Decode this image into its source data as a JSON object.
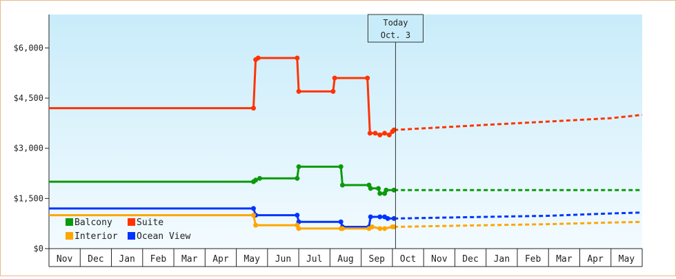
{
  "chart_data": {
    "type": "line",
    "title": "",
    "xlabel": "",
    "ylabel": "",
    "ylim": [
      0,
      7000
    ],
    "yticks": [
      0,
      1500,
      3000,
      4500,
      6000
    ],
    "ytick_labels": [
      "$0",
      "$1,500",
      "$3,000",
      "$4,500",
      "$6,000"
    ],
    "month_labels": [
      "Nov",
      "Dec",
      "Jan",
      "Feb",
      "Mar",
      "Apr",
      "May",
      "Jun",
      "Jul",
      "Aug",
      "Sep",
      "Oct",
      "Nov",
      "Dec",
      "Jan",
      "Feb",
      "Mar",
      "Apr",
      "May"
    ],
    "today_label": "Today",
    "today_date": "Oct. 3",
    "today_x": 11.1,
    "grid": false,
    "legend_position": "bottom-left",
    "legend": [
      {
        "name": "Balcony",
        "color": "#0a9a0a"
      },
      {
        "name": "Suite",
        "color": "#ff3300"
      },
      {
        "name": "Interior",
        "color": "#ffa500"
      },
      {
        "name": "Ocean View",
        "color": "#0033ff"
      }
    ],
    "series": [
      {
        "name": "Suite",
        "color": "#ff3300",
        "values": [
          [
            0.0,
            4200
          ],
          [
            6.55,
            4200
          ],
          [
            6.62,
            5650
          ],
          [
            6.7,
            5700
          ],
          [
            7.95,
            5700
          ],
          [
            8.0,
            4700
          ],
          [
            9.1,
            4700
          ],
          [
            9.15,
            5100
          ],
          [
            10.2,
            5100
          ],
          [
            10.28,
            3450
          ],
          [
            10.45,
            3450
          ],
          [
            10.6,
            3400
          ],
          [
            10.75,
            3450
          ],
          [
            10.9,
            3400
          ],
          [
            11.0,
            3500
          ],
          [
            11.05,
            3550
          ]
        ],
        "forecast": [
          [
            11.1,
            3550
          ],
          [
            14.0,
            3700
          ],
          [
            16.0,
            3800
          ],
          [
            18.0,
            3900
          ],
          [
            19.0,
            4000
          ]
        ]
      },
      {
        "name": "Balcony",
        "color": "#0a9a0a",
        "values": [
          [
            0.0,
            2000
          ],
          [
            6.55,
            2000
          ],
          [
            6.62,
            2050
          ],
          [
            6.75,
            2100
          ],
          [
            7.95,
            2100
          ],
          [
            8.0,
            2450
          ],
          [
            9.35,
            2450
          ],
          [
            9.4,
            1900
          ],
          [
            10.25,
            1900
          ],
          [
            10.3,
            1800
          ],
          [
            10.55,
            1800
          ],
          [
            10.6,
            1650
          ],
          [
            10.75,
            1650
          ],
          [
            10.8,
            1750
          ],
          [
            11.05,
            1750
          ]
        ],
        "forecast": [
          [
            11.1,
            1750
          ],
          [
            19.0,
            1750
          ]
        ]
      },
      {
        "name": "Ocean View",
        "color": "#0033ff",
        "values": [
          [
            0.0,
            1200
          ],
          [
            6.55,
            1200
          ],
          [
            6.62,
            1000
          ],
          [
            7.95,
            1000
          ],
          [
            8.0,
            800
          ],
          [
            9.35,
            800
          ],
          [
            9.4,
            650
          ],
          [
            10.25,
            650
          ],
          [
            10.3,
            950
          ],
          [
            10.6,
            950
          ],
          [
            10.75,
            950
          ],
          [
            10.85,
            900
          ],
          [
            11.05,
            900
          ]
        ],
        "forecast": [
          [
            11.1,
            900
          ],
          [
            14.0,
            950
          ],
          [
            16.0,
            980
          ],
          [
            18.0,
            1050
          ],
          [
            19.0,
            1080
          ]
        ]
      },
      {
        "name": "Interior",
        "color": "#ffa500",
        "values": [
          [
            0.0,
            1000
          ],
          [
            6.55,
            1000
          ],
          [
            6.62,
            700
          ],
          [
            7.95,
            700
          ],
          [
            8.0,
            600
          ],
          [
            9.35,
            600
          ],
          [
            9.4,
            600
          ],
          [
            10.25,
            600
          ],
          [
            10.35,
            650
          ],
          [
            10.6,
            600
          ],
          [
            10.75,
            600
          ],
          [
            11.0,
            650
          ],
          [
            11.05,
            650
          ]
        ],
        "forecast": [
          [
            11.1,
            650
          ],
          [
            14.0,
            700
          ],
          [
            16.0,
            730
          ],
          [
            18.0,
            780
          ],
          [
            19.0,
            800
          ]
        ]
      }
    ]
  }
}
